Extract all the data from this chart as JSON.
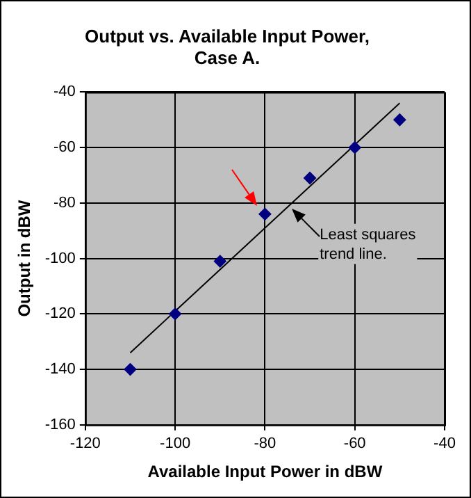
{
  "chart_data": {
    "type": "scatter",
    "title": "Output vs. Available Input Power, Case A.",
    "xlabel": "Available Input Power in dBW",
    "ylabel": "Output in dBW",
    "series": [
      {
        "color": "#000080",
        "marker": "diamond",
        "x": [
          -110,
          -100,
          -90,
          -80,
          -70,
          -60,
          -50
        ],
        "values": [
          -140,
          -120,
          -101,
          -84,
          -71,
          -60,
          -50
        ]
      },
      {
        "type": "line",
        "color": "#000000",
        "x": [
          -110,
          -50
        ],
        "values": [
          -134,
          -44
        ]
      }
    ],
    "xlim": [
      -120,
      -40
    ],
    "xticks": [
      -120,
      -100,
      -80,
      -60,
      -40
    ],
    "ylim": [
      -160,
      -40
    ],
    "yticks": [
      -160,
      -140,
      -120,
      -100,
      -80,
      -60,
      -40
    ],
    "annotations": [
      {
        "text": "Least squares trend line.",
        "x": -74,
        "y": -82
      }
    ],
    "grid": true,
    "legend": false
  }
}
